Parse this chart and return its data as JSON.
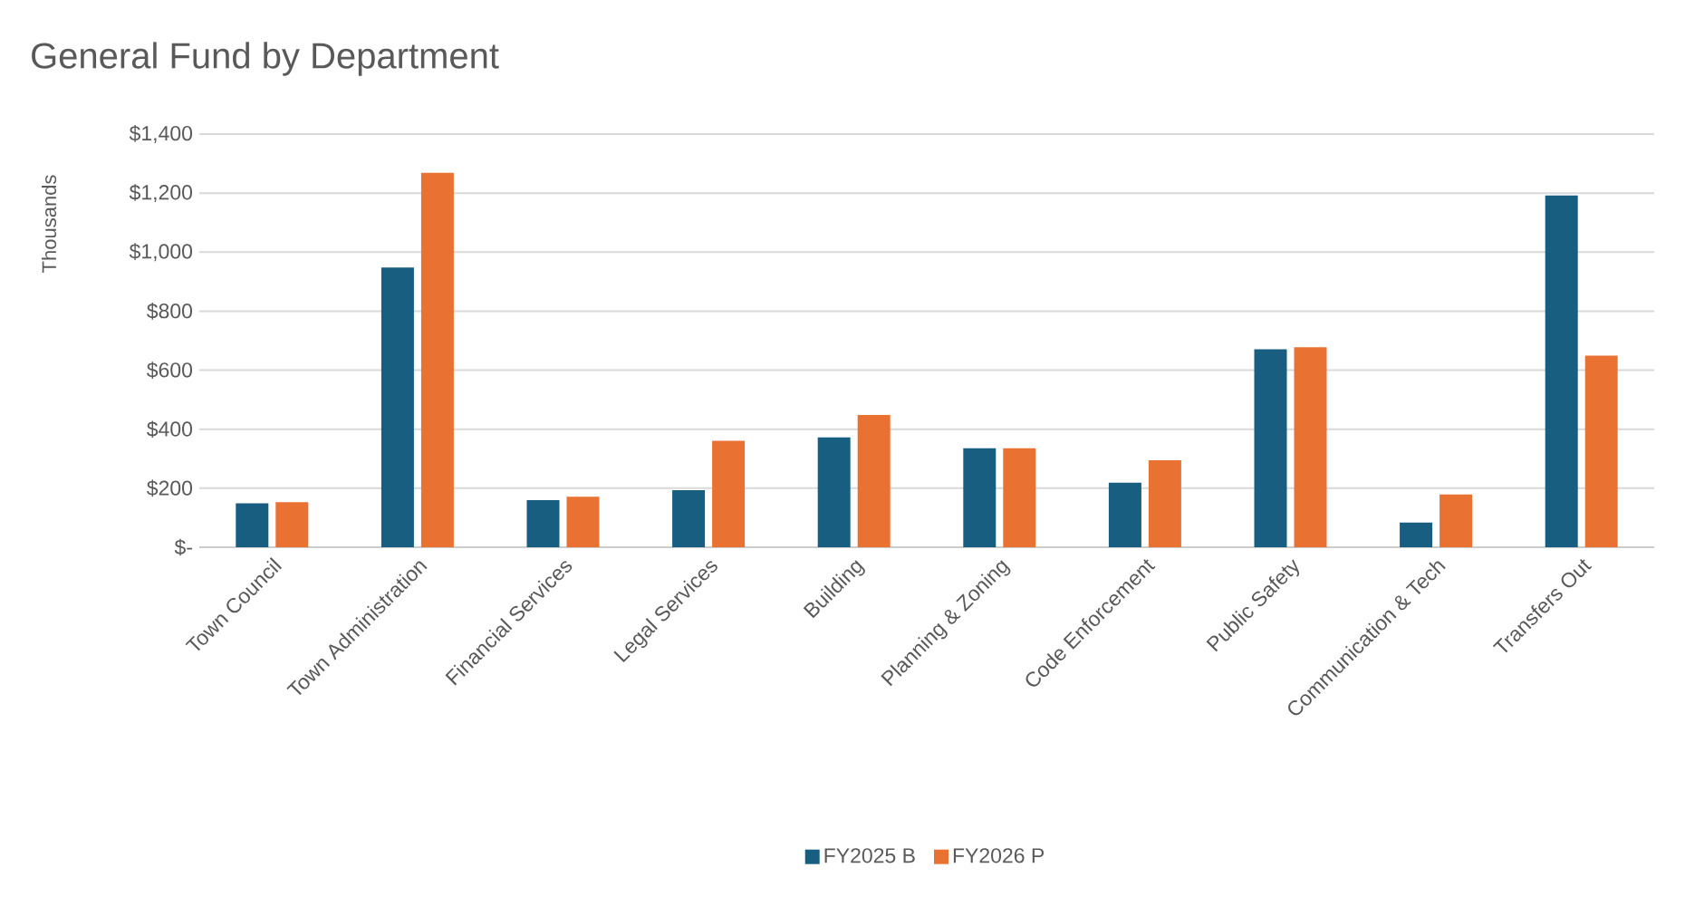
{
  "chart_data": {
    "type": "bar",
    "title": "General Fund by Department",
    "ylabel": "Thousands",
    "categories": [
      "Town Council",
      "Town Administration",
      "Financial Services",
      "Legal Services",
      "Building",
      "Planning & Zoning",
      "Code Enforcement",
      "Public Safety",
      "Communication & Tech",
      "Transfers Out"
    ],
    "series": [
      {
        "name": "FY2025 B",
        "color": "#175e80",
        "values": [
          149,
          948,
          160,
          193,
          372,
          335,
          219,
          671,
          84,
          1192
        ]
      },
      {
        "name": "FY2026 P",
        "color": "#e97132",
        "values": [
          153,
          1269,
          171,
          361,
          448,
          335,
          295,
          678,
          179,
          649
        ]
      }
    ],
    "ylim": [
      0,
      1400
    ],
    "yticks": [
      {
        "value": 0,
        "label": "$-"
      },
      {
        "value": 200,
        "label": "$200"
      },
      {
        "value": 400,
        "label": "$400"
      },
      {
        "value": 600,
        "label": "$600"
      },
      {
        "value": 800,
        "label": "$800"
      },
      {
        "value": 1000,
        "label": "$1,000"
      },
      {
        "value": 1200,
        "label": "$1,200"
      },
      {
        "value": 1400,
        "label": "$1,400"
      }
    ],
    "grid": "y",
    "legend": "bottom"
  }
}
